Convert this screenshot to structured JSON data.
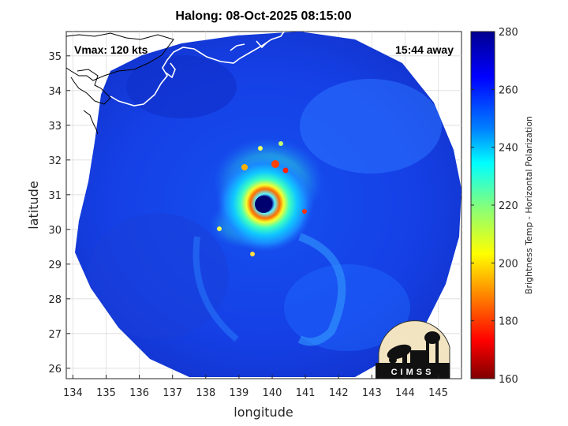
{
  "title": "Halong: 08-Oct-2025 08:15:00",
  "annotations": {
    "vmax": "Vmax: 120 kts",
    "away": "15:44 away"
  },
  "axes": {
    "xlabel": "longitude",
    "ylabel": "latitude",
    "xlim": [
      133.8,
      145.7
    ],
    "ylim": [
      25.7,
      35.7
    ],
    "xticks": [
      134,
      135,
      136,
      137,
      138,
      139,
      140,
      141,
      142,
      143,
      144,
      145
    ],
    "yticks": [
      26,
      27,
      28,
      29,
      30,
      31,
      32,
      33,
      34,
      35
    ],
    "grid": true
  },
  "colorbar": {
    "label": "Brightness Temp - Horizontal Polarization",
    "min": 160,
    "max": 280,
    "ticks": [
      160,
      180,
      200,
      220,
      240,
      260,
      280
    ],
    "colormap": "jet",
    "colors": [
      "#7f0000",
      "#ff0000",
      "#ff8000",
      "#ffff00",
      "#80ff80",
      "#00ffff",
      "#0080ff",
      "#0000ff",
      "#00008f"
    ]
  },
  "storm": {
    "name": "Halong",
    "eye_lon": 139.8,
    "eye_lat": 30.75
  },
  "logo": {
    "text": "CIMSS"
  }
}
